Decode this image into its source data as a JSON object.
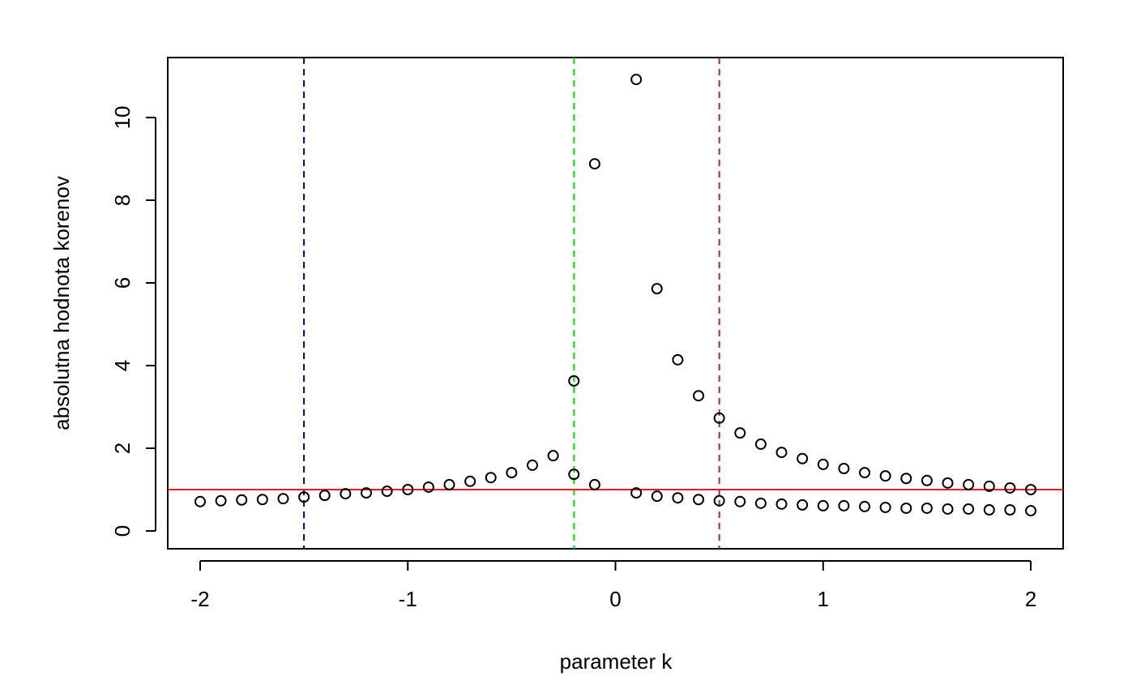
{
  "chart_data": {
    "type": "scatter",
    "xlabel": "parameter k",
    "ylabel": "absolutna hodnota korenov",
    "x": [
      -2,
      -1.9,
      -1.8,
      -1.7,
      -1.6,
      -1.5,
      -1.4,
      -1.3,
      -1.2,
      -1.1,
      -1,
      -0.9,
      -0.8,
      -0.7,
      -0.6,
      -0.5,
      -0.4,
      -0.3,
      -0.2,
      -0.1,
      0,
      0.1,
      0.2,
      0.3,
      0.4,
      0.5,
      0.6,
      0.7,
      0.8,
      0.9,
      1,
      1.1,
      1.2,
      1.3,
      1.4,
      1.5,
      1.6,
      1.7,
      1.8,
      1.9,
      2
    ],
    "series": [
      {
        "color": "#000000",
        "values": [
          0.71,
          0.73,
          0.75,
          0.76,
          0.78,
          0.82,
          0.86,
          0.9,
          0.92,
          0.96,
          1.0,
          1.06,
          1.12,
          1.2,
          1.29,
          1.41,
          1.59,
          1.82,
          3.63,
          8.88,
          null,
          10.92,
          5.86,
          4.14,
          3.27,
          2.73,
          2.37,
          2.1,
          1.9,
          1.75,
          1.61,
          1.51,
          1.41,
          1.33,
          1.27,
          1.22,
          1.16,
          1.12,
          1.08,
          1.04,
          1.0
        ]
      },
      {
        "color": "#000000",
        "values": [
          null,
          null,
          null,
          null,
          null,
          null,
          null,
          null,
          null,
          null,
          null,
          null,
          null,
          null,
          null,
          null,
          null,
          null,
          1.37,
          1.12,
          null,
          0.92,
          0.84,
          0.8,
          0.76,
          0.73,
          0.71,
          0.67,
          0.65,
          0.63,
          0.61,
          0.61,
          0.59,
          0.57,
          0.55,
          0.55,
          0.53,
          0.53,
          0.51,
          0.51,
          0.49
        ]
      }
    ],
    "hlines": [
      {
        "value": 1,
        "color": "#e41a1c"
      }
    ],
    "vlines": [
      {
        "value": -1.5,
        "color": "#00008b"
      },
      {
        "value": -0.2,
        "color": "#00ee00"
      },
      {
        "value": 0.5,
        "color": "#a52a2a"
      }
    ],
    "xlim": [
      -2.156,
      2.156
    ],
    "ylim": [
      -0.431,
      11.45
    ],
    "xticks": [
      -2,
      -1,
      0,
      1,
      2
    ],
    "yticks": [
      0,
      2,
      4,
      6,
      8,
      10
    ]
  }
}
